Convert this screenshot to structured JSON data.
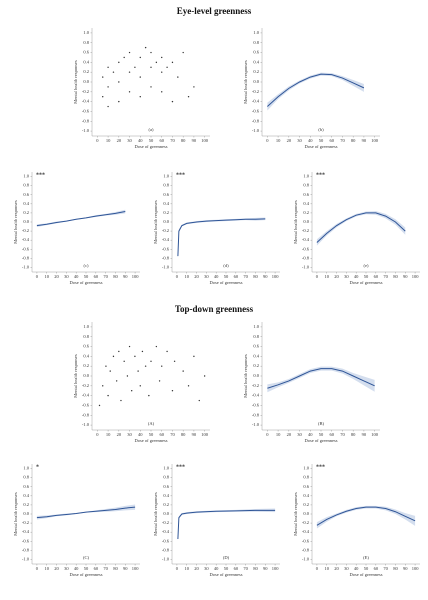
{
  "titles": [
    "Eye-level greenness",
    "Top-down greenness"
  ],
  "chart_data": [
    {
      "type": "scatter",
      "panel_label": "(a)",
      "xlabel": "Dose of greenness",
      "ylabel": "Mental health responses",
      "xlim": [
        -5,
        105
      ],
      "ylim": [
        -1.1,
        1.1
      ],
      "xticks": [
        0,
        10,
        20,
        30,
        40,
        50,
        60,
        70,
        80,
        90,
        100
      ],
      "yticks": [
        {
          "value": -1.0,
          "label": "-1.0"
        },
        -0.8,
        -0.6,
        -0.4,
        -0.2,
        {
          "value": 0,
          "label": "0.0"
        },
        0.2,
        0.4,
        0.6,
        0.8,
        {
          "value": 1.0,
          "label": "1.0"
        }
      ],
      "color": "#333333",
      "x": [
        5,
        5,
        10,
        10,
        10,
        15,
        20,
        20,
        20,
        25,
        30,
        30,
        30,
        35,
        40,
        40,
        40,
        45,
        50,
        50,
        50,
        55,
        60,
        60,
        60,
        65,
        70,
        70,
        75,
        80,
        85,
        90
      ],
      "values": [
        -0.3,
        0.1,
        -0.5,
        -0.1,
        0.3,
        0.2,
        -0.4,
        0.0,
        0.4,
        0.5,
        -0.2,
        0.2,
        0.6,
        0.3,
        -0.3,
        0.1,
        0.5,
        0.7,
        -0.1,
        0.3,
        0.6,
        0.4,
        -0.2,
        0.2,
        0.5,
        0.3,
        -0.4,
        0.4,
        0.1,
        0.6,
        -0.3,
        -0.1
      ]
    },
    {
      "type": "line",
      "panel_label": "(b)",
      "xlabel": "Dose of greenness",
      "ylabel": "Mental health responses",
      "xlim": [
        -5,
        105
      ],
      "ylim": [
        -1.1,
        1.1
      ],
      "xticks": [
        0,
        10,
        20,
        30,
        40,
        50,
        60,
        70,
        80,
        90,
        100
      ],
      "yticks": [
        {
          "value": -1.0,
          "label": "-1.0"
        },
        -0.8,
        -0.6,
        -0.4,
        -0.2,
        {
          "value": 0,
          "label": "0.0"
        },
        0.2,
        0.4,
        0.6,
        0.8,
        {
          "value": 1.0,
          "label": "1.0"
        }
      ],
      "color": "#2f5597",
      "band_color": "#c9d6ea",
      "x": [
        0,
        10,
        20,
        30,
        40,
        50,
        60,
        70,
        80,
        90
      ],
      "values": [
        -0.5,
        -0.3,
        -0.13,
        0.0,
        0.1,
        0.16,
        0.15,
        0.08,
        -0.02,
        -0.12
      ],
      "band_lower": [
        -0.58,
        -0.35,
        -0.17,
        -0.03,
        0.07,
        0.13,
        0.12,
        0.04,
        -0.08,
        -0.2
      ],
      "band_upper": [
        -0.42,
        -0.25,
        -0.09,
        0.03,
        0.13,
        0.19,
        0.18,
        0.12,
        0.04,
        -0.04
      ]
    },
    {
      "type": "line",
      "panel_label": "(c)",
      "significance": "***",
      "xlabel": "Dose of greenness",
      "ylabel": "Mental health responses",
      "xlim": [
        -5,
        105
      ],
      "ylim": [
        -1.1,
        1.1
      ],
      "xticks": [
        0,
        10,
        20,
        30,
        40,
        50,
        60,
        70,
        80,
        90,
        100
      ],
      "yticks": [
        {
          "value": -1.0,
          "label": "-1.0"
        },
        -0.8,
        -0.6,
        -0.4,
        -0.2,
        {
          "value": 0,
          "label": "0.0"
        },
        0.2,
        0.4,
        0.6,
        0.8,
        {
          "value": 1.0,
          "label": "1.0"
        }
      ],
      "color": "#2f5597",
      "band_color": "#c9d6ea",
      "x": [
        0,
        10,
        20,
        30,
        40,
        50,
        60,
        70,
        80,
        90
      ],
      "values": [
        -0.08,
        -0.05,
        -0.01,
        0.02,
        0.06,
        0.09,
        0.13,
        0.16,
        0.19,
        0.23
      ],
      "band_lower": [
        -0.11,
        -0.07,
        -0.03,
        0.01,
        0.05,
        0.08,
        0.11,
        0.14,
        0.16,
        0.19
      ],
      "band_upper": [
        -0.05,
        -0.03,
        0.01,
        0.03,
        0.07,
        0.1,
        0.15,
        0.18,
        0.22,
        0.27
      ]
    },
    {
      "type": "line",
      "panel_label": "(d)",
      "significance": "***",
      "xlabel": "Dose of greenness",
      "ylabel": "Mental health responses",
      "xlim": [
        -5,
        105
      ],
      "ylim": [
        -1.1,
        1.1
      ],
      "xticks": [
        0,
        10,
        20,
        30,
        40,
        50,
        60,
        70,
        80,
        90,
        100
      ],
      "yticks": [
        {
          "value": -1.0,
          "label": "-1.0"
        },
        -0.8,
        -0.6,
        -0.4,
        -0.2,
        {
          "value": 0,
          "label": "0.0"
        },
        0.2,
        0.4,
        0.6,
        0.8,
        {
          "value": 1.0,
          "label": "1.0"
        }
      ],
      "color": "#2f5597",
      "band_color": "#c9d6ea",
      "x": [
        1,
        2,
        5,
        10,
        20,
        30,
        40,
        50,
        60,
        70,
        80,
        90
      ],
      "values": [
        -0.75,
        -0.2,
        -0.08,
        -0.03,
        0.0,
        0.02,
        0.03,
        0.04,
        0.05,
        0.06,
        0.06,
        0.07
      ],
      "band_lower": [
        -0.8,
        -0.24,
        -0.1,
        -0.05,
        -0.02,
        0.0,
        0.01,
        0.02,
        0.03,
        0.04,
        0.03,
        0.04
      ],
      "band_upper": [
        -0.7,
        -0.16,
        -0.06,
        -0.01,
        0.02,
        0.04,
        0.05,
        0.06,
        0.07,
        0.08,
        0.09,
        0.1
      ]
    },
    {
      "type": "line",
      "panel_label": "(e)",
      "significance": "***",
      "xlabel": "Dose of greenness",
      "ylabel": "Mental health responses",
      "xlim": [
        -5,
        105
      ],
      "ylim": [
        -1.1,
        1.1
      ],
      "xticks": [
        0,
        10,
        20,
        30,
        40,
        50,
        60,
        70,
        80,
        90,
        100
      ],
      "yticks": [
        {
          "value": -1.0,
          "label": "-1.0"
        },
        -0.8,
        -0.6,
        -0.4,
        -0.2,
        {
          "value": 0,
          "label": "0.0"
        },
        0.2,
        0.4,
        0.6,
        0.8,
        {
          "value": 1.0,
          "label": "1.0"
        }
      ],
      "color": "#2f5597",
      "band_color": "#c9d6ea",
      "x": [
        0,
        10,
        20,
        30,
        40,
        50,
        60,
        70,
        80,
        90
      ],
      "values": [
        -0.45,
        -0.25,
        -0.08,
        0.05,
        0.15,
        0.2,
        0.2,
        0.13,
        0.0,
        -0.2
      ],
      "band_lower": [
        -0.52,
        -0.3,
        -0.12,
        0.02,
        0.12,
        0.17,
        0.16,
        0.08,
        -0.06,
        -0.28
      ],
      "band_upper": [
        -0.38,
        -0.2,
        -0.04,
        0.08,
        0.18,
        0.23,
        0.24,
        0.18,
        0.06,
        -0.12
      ]
    },
    {
      "type": "scatter",
      "panel_label": "(A)",
      "xlabel": "Dose of greenness",
      "ylabel": "Mental health responses",
      "xlim": [
        -5,
        105
      ],
      "ylim": [
        -1.1,
        1.1
      ],
      "xticks": [
        0,
        10,
        20,
        30,
        40,
        50,
        60,
        70,
        80,
        90,
        100
      ],
      "yticks": [
        {
          "value": -1.0,
          "label": "-1.0"
        },
        -0.8,
        -0.6,
        -0.4,
        -0.2,
        {
          "value": 0,
          "label": "0.0"
        },
        0.2,
        0.4,
        0.6,
        0.8,
        {
          "value": 1.0,
          "label": "1.0"
        }
      ],
      "color": "#333333",
      "x": [
        2,
        5,
        8,
        10,
        12,
        15,
        18,
        20,
        22,
        25,
        28,
        30,
        32,
        35,
        38,
        40,
        42,
        45,
        48,
        50,
        55,
        58,
        60,
        65,
        70,
        72,
        80,
        85,
        90,
        95,
        100
      ],
      "values": [
        -0.6,
        -0.2,
        0.2,
        -0.4,
        0.1,
        0.4,
        -0.1,
        0.5,
        -0.5,
        0.3,
        0.0,
        0.6,
        -0.3,
        0.4,
        0.1,
        -0.2,
        0.5,
        0.2,
        -0.4,
        0.3,
        0.6,
        -0.1,
        0.2,
        0.5,
        -0.3,
        0.3,
        0.1,
        -0.2,
        0.4,
        -0.5,
        0.0
      ]
    },
    {
      "type": "line",
      "panel_label": "(B)",
      "xlabel": "Dose of greenness",
      "ylabel": "Mental health responses",
      "xlim": [
        -5,
        105
      ],
      "ylim": [
        -1.1,
        1.1
      ],
      "xticks": [
        0,
        10,
        20,
        30,
        40,
        50,
        60,
        70,
        80,
        90,
        100
      ],
      "yticks": [
        {
          "value": -1.0,
          "label": "-1.0"
        },
        -0.8,
        -0.6,
        -0.4,
        -0.2,
        {
          "value": 0,
          "label": "0.0"
        },
        0.2,
        0.4,
        0.6,
        0.8,
        {
          "value": 1.0,
          "label": "1.0"
        }
      ],
      "color": "#2f5597",
      "band_color": "#c9d6ea",
      "x": [
        0,
        10,
        20,
        30,
        40,
        50,
        60,
        70,
        80,
        90,
        100
      ],
      "values": [
        -0.25,
        -0.18,
        -0.1,
        0.0,
        0.1,
        0.15,
        0.15,
        0.1,
        0.0,
        -0.1,
        -0.2
      ],
      "band_lower": [
        -0.33,
        -0.23,
        -0.14,
        -0.04,
        0.06,
        0.11,
        0.11,
        0.05,
        -0.06,
        -0.19,
        -0.32
      ],
      "band_upper": [
        -0.17,
        -0.13,
        -0.06,
        0.04,
        0.14,
        0.19,
        0.19,
        0.15,
        0.06,
        -0.01,
        -0.08
      ]
    },
    {
      "type": "line",
      "panel_label": "(C)",
      "significance": "*",
      "xlabel": "Dose of greenness",
      "ylabel": "Mental health responses",
      "xlim": [
        -5,
        105
      ],
      "ylim": [
        -1.1,
        1.1
      ],
      "xticks": [
        0,
        10,
        20,
        30,
        40,
        50,
        60,
        70,
        80,
        90,
        100
      ],
      "yticks": [
        {
          "value": -1.0,
          "label": "-1.0"
        },
        -0.8,
        -0.6,
        -0.4,
        -0.2,
        {
          "value": 0,
          "label": "0.0"
        },
        0.2,
        0.4,
        0.6,
        0.8,
        {
          "value": 1.0,
          "label": "1.0"
        }
      ],
      "color": "#2f5597",
      "band_color": "#c9d6ea",
      "x": [
        0,
        10,
        20,
        30,
        40,
        50,
        60,
        70,
        80,
        90,
        100
      ],
      "values": [
        -0.08,
        -0.06,
        -0.03,
        -0.01,
        0.01,
        0.04,
        0.06,
        0.08,
        0.1,
        0.13,
        0.15
      ],
      "band_lower": [
        -0.12,
        -0.09,
        -0.05,
        -0.03,
        0.0,
        0.03,
        0.04,
        0.05,
        0.06,
        0.08,
        0.09
      ],
      "band_upper": [
        -0.04,
        -0.03,
        -0.01,
        0.01,
        0.02,
        0.05,
        0.08,
        0.11,
        0.14,
        0.18,
        0.21
      ]
    },
    {
      "type": "line",
      "panel_label": "(D)",
      "significance": "***",
      "xlabel": "Dose of greenness",
      "ylabel": "Mental health responses",
      "xlim": [
        -5,
        105
      ],
      "ylim": [
        -1.1,
        1.1
      ],
      "xticks": [
        0,
        10,
        20,
        30,
        40,
        50,
        60,
        70,
        80,
        90,
        100
      ],
      "yticks": [
        {
          "value": -1.0,
          "label": "-1.0"
        },
        -0.8,
        -0.6,
        -0.4,
        -0.2,
        {
          "value": 0,
          "label": "0.0"
        },
        0.2,
        0.4,
        0.6,
        0.8,
        {
          "value": 1.0,
          "label": "1.0"
        }
      ],
      "color": "#2f5597",
      "band_color": "#c9d6ea",
      "x": [
        1,
        2,
        5,
        10,
        20,
        40,
        60,
        80,
        100
      ],
      "values": [
        -0.55,
        -0.08,
        0.0,
        0.02,
        0.04,
        0.06,
        0.07,
        0.08,
        0.08
      ],
      "band_lower": [
        -0.6,
        -0.11,
        -0.02,
        0.0,
        0.02,
        0.04,
        0.05,
        0.05,
        0.04
      ],
      "band_upper": [
        -0.5,
        -0.05,
        0.02,
        0.04,
        0.06,
        0.08,
        0.09,
        0.11,
        0.12
      ]
    },
    {
      "type": "line",
      "panel_label": "(E)",
      "significance": "***",
      "xlabel": "Dose of greenness",
      "ylabel": "Mental health responses",
      "xlim": [
        -5,
        105
      ],
      "ylim": [
        -1.1,
        1.1
      ],
      "xticks": [
        0,
        10,
        20,
        30,
        40,
        50,
        60,
        70,
        80,
        90,
        100
      ],
      "yticks": [
        {
          "value": -1.0,
          "label": "-1.0"
        },
        -0.8,
        -0.6,
        -0.4,
        -0.2,
        {
          "value": 0,
          "label": "0.0"
        },
        0.2,
        0.4,
        0.6,
        0.8,
        {
          "value": 1.0,
          "label": "1.0"
        }
      ],
      "color": "#2f5597",
      "band_color": "#c9d6ea",
      "x": [
        0,
        10,
        20,
        30,
        40,
        50,
        60,
        70,
        80,
        90,
        100
      ],
      "values": [
        -0.25,
        -0.12,
        -0.02,
        0.06,
        0.12,
        0.15,
        0.15,
        0.12,
        0.05,
        -0.05,
        -0.15
      ],
      "band_lower": [
        -0.32,
        -0.17,
        -0.05,
        0.03,
        0.09,
        0.12,
        0.12,
        0.08,
        0.0,
        -0.12,
        -0.26
      ],
      "band_upper": [
        -0.18,
        -0.07,
        0.01,
        0.09,
        0.15,
        0.18,
        0.18,
        0.16,
        0.1,
        0.02,
        -0.04
      ]
    }
  ]
}
